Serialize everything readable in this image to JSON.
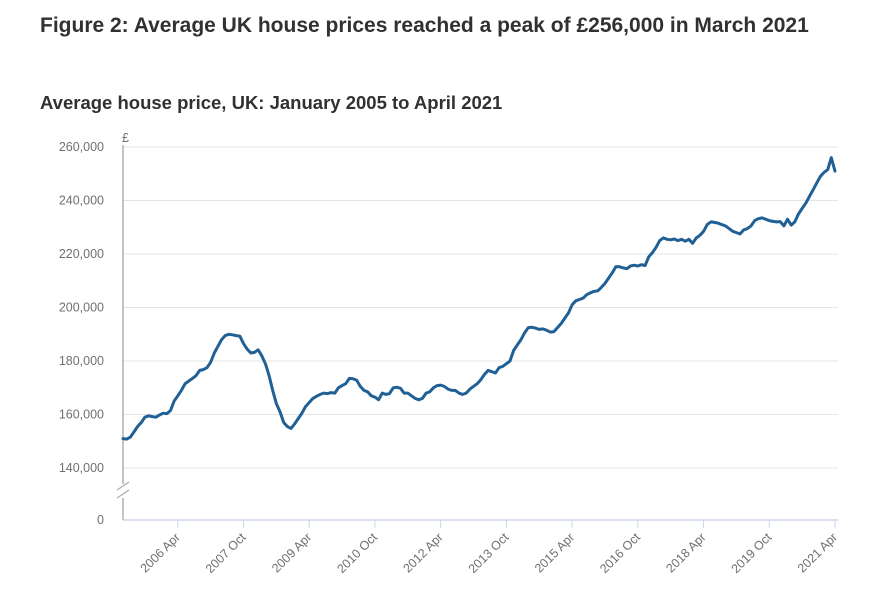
{
  "figure": {
    "title": "Figure 2: Average UK house prices reached a peak of £256,000 in March 2021",
    "subtitle": "Average house price, UK: January 2005 to April 2021"
  },
  "chart_data": {
    "type": "line",
    "title": "Average house price, UK: January 2005 to April 2021",
    "xlabel": "",
    "ylabel": "£",
    "y_unit_label": "£",
    "ylim": [
      140000,
      260000
    ],
    "y_axis_break": true,
    "y_axis_baseline_label": "0",
    "y_ticks": [
      0,
      140000,
      160000,
      180000,
      200000,
      220000,
      240000,
      260000
    ],
    "y_tick_labels": [
      "0",
      "140,000",
      "160,000",
      "180,000",
      "200,000",
      "220,000",
      "240,000",
      "260,000"
    ],
    "x_range": [
      "2005-01",
      "2021-04"
    ],
    "x_ticks": [
      "2006-04",
      "2007-10",
      "2009-04",
      "2010-10",
      "2012-04",
      "2013-10",
      "2015-04",
      "2016-10",
      "2018-04",
      "2019-10",
      "2021-04"
    ],
    "x_tick_labels": [
      "2006 Apr",
      "2007 Oct",
      "2009 Apr",
      "2010 Oct",
      "2012 Apr",
      "2013 Oct",
      "2015 Apr",
      "2016 Oct",
      "2018 Apr",
      "2019 Oct",
      "2021 Apr"
    ],
    "grid": true,
    "legend": "none",
    "series": [
      {
        "name": "Average house price, UK",
        "color": "#206095",
        "x": [
          "2005-01",
          "2005-02",
          "2005-03",
          "2005-04",
          "2005-05",
          "2005-06",
          "2005-07",
          "2005-08",
          "2005-09",
          "2005-10",
          "2005-11",
          "2005-12",
          "2006-01",
          "2006-02",
          "2006-03",
          "2006-04",
          "2006-05",
          "2006-06",
          "2006-07",
          "2006-08",
          "2006-09",
          "2006-10",
          "2006-11",
          "2006-12",
          "2007-01",
          "2007-02",
          "2007-03",
          "2007-04",
          "2007-05",
          "2007-06",
          "2007-07",
          "2007-08",
          "2007-09",
          "2007-10",
          "2007-11",
          "2007-12",
          "2008-01",
          "2008-02",
          "2008-03",
          "2008-04",
          "2008-05",
          "2008-06",
          "2008-07",
          "2008-08",
          "2008-09",
          "2008-10",
          "2008-11",
          "2008-12",
          "2009-01",
          "2009-02",
          "2009-03",
          "2009-04",
          "2009-05",
          "2009-06",
          "2009-07",
          "2009-08",
          "2009-09",
          "2009-10",
          "2009-11",
          "2009-12",
          "2010-01",
          "2010-02",
          "2010-03",
          "2010-04",
          "2010-05",
          "2010-06",
          "2010-07",
          "2010-08",
          "2010-09",
          "2010-10",
          "2010-11",
          "2010-12",
          "2011-01",
          "2011-02",
          "2011-03",
          "2011-04",
          "2011-05",
          "2011-06",
          "2011-07",
          "2011-08",
          "2011-09",
          "2011-10",
          "2011-11",
          "2011-12",
          "2012-01",
          "2012-02",
          "2012-03",
          "2012-04",
          "2012-05",
          "2012-06",
          "2012-07",
          "2012-08",
          "2012-09",
          "2012-10",
          "2012-11",
          "2012-12",
          "2013-01",
          "2013-02",
          "2013-03",
          "2013-04",
          "2013-05",
          "2013-06",
          "2013-07",
          "2013-08",
          "2013-09",
          "2013-10",
          "2013-11",
          "2013-12",
          "2014-01",
          "2014-02",
          "2014-03",
          "2014-04",
          "2014-05",
          "2014-06",
          "2014-07",
          "2014-08",
          "2014-09",
          "2014-10",
          "2014-11",
          "2014-12",
          "2015-01",
          "2015-02",
          "2015-03",
          "2015-04",
          "2015-05",
          "2015-06",
          "2015-07",
          "2015-08",
          "2015-09",
          "2015-10",
          "2015-11",
          "2015-12",
          "2016-01",
          "2016-02",
          "2016-03",
          "2016-04",
          "2016-05",
          "2016-06",
          "2016-07",
          "2016-08",
          "2016-09",
          "2016-10",
          "2016-11",
          "2016-12",
          "2017-01",
          "2017-02",
          "2017-03",
          "2017-04",
          "2017-05",
          "2017-06",
          "2017-07",
          "2017-08",
          "2017-09",
          "2017-10",
          "2017-11",
          "2017-12",
          "2018-01",
          "2018-02",
          "2018-03",
          "2018-04",
          "2018-05",
          "2018-06",
          "2018-07",
          "2018-08",
          "2018-09",
          "2018-10",
          "2018-11",
          "2018-12",
          "2019-01",
          "2019-02",
          "2019-03",
          "2019-04",
          "2019-05",
          "2019-06",
          "2019-07",
          "2019-08",
          "2019-09",
          "2019-10",
          "2019-11",
          "2019-12",
          "2020-01",
          "2020-02",
          "2020-03",
          "2020-04",
          "2020-05",
          "2020-06",
          "2020-07",
          "2020-08",
          "2020-09",
          "2020-10",
          "2020-11",
          "2020-12",
          "2021-01",
          "2021-02",
          "2021-03",
          "2021-04"
        ],
        "values": [
          151000,
          150800,
          151500,
          153500,
          155500,
          157000,
          159000,
          159500,
          159200,
          159000,
          159800,
          160500,
          160300,
          161500,
          165000,
          167000,
          169000,
          171500,
          172500,
          173500,
          174500,
          176500,
          176800,
          177500,
          179500,
          183000,
          185500,
          188000,
          189500,
          190000,
          189800,
          189500,
          189300,
          186500,
          184500,
          183000,
          183200,
          184200,
          182000,
          179000,
          174500,
          169000,
          164000,
          161000,
          157000,
          155500,
          154800,
          156500,
          158500,
          160500,
          163000,
          164500,
          166000,
          166800,
          167500,
          168000,
          167800,
          168200,
          168000,
          170000,
          170800,
          171500,
          173500,
          173400,
          172800,
          170500,
          169000,
          168500,
          167000,
          166500,
          165500,
          168000,
          167500,
          167800,
          170000,
          170200,
          169800,
          168000,
          168000,
          167000,
          166000,
          165500,
          166000,
          168000,
          168500,
          170000,
          170800,
          171000,
          170500,
          169500,
          169000,
          169000,
          168000,
          167500,
          168000,
          169500,
          170500,
          171500,
          173000,
          175000,
          176500,
          176000,
          175500,
          177500,
          178000,
          179000,
          180000,
          184000,
          186000,
          188000,
          190500,
          192500,
          192600,
          192300,
          191800,
          192000,
          191500,
          190800,
          191000,
          192500,
          194000,
          196000,
          198000,
          201000,
          202500,
          203000,
          203500,
          204800,
          205500,
          206000,
          206200,
          207500,
          209000,
          211000,
          213000,
          215300,
          215200,
          214800,
          214500,
          215500,
          215800,
          215500,
          216000,
          215700,
          219000,
          220500,
          222500,
          225000,
          226000,
          225500,
          225300,
          225600,
          225000,
          225500,
          224800,
          225500,
          224000,
          226000,
          227000,
          228500,
          231000,
          232000,
          231800,
          231500,
          231000,
          230500,
          229500,
          228500,
          228000,
          227500,
          229000,
          229500,
          230500,
          232500,
          233200,
          233500,
          233000,
          232500,
          232200,
          232000,
          232100,
          230500,
          233000,
          230800,
          232000,
          235000,
          237000,
          239000,
          241500,
          244000,
          246500,
          249000,
          250500,
          251500,
          256000,
          251000
        ]
      }
    ],
    "annotations": [
      {
        "text": "Peak of £256,000",
        "x": "2021-03",
        "y": 256000
      }
    ]
  }
}
